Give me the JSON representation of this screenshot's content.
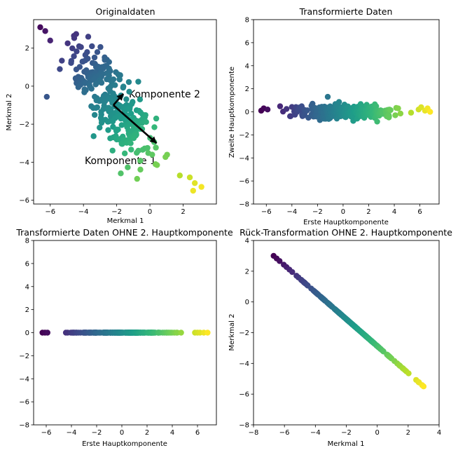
{
  "figure": {
    "colormap": [
      "#440154",
      "#482878",
      "#3e4989",
      "#31688e",
      "#26828e",
      "#1f9e89",
      "#35b779",
      "#6ece58",
      "#b5de2b",
      "#fde725"
    ]
  },
  "chart_data": [
    {
      "type": "scatter",
      "title": "Originaldaten",
      "xlabel": "Merkmal 1",
      "ylabel": "Merkmal 2",
      "xlim": [
        -7,
        4
      ],
      "ylim": [
        -6.2,
        3.5
      ],
      "xticks": [
        -6,
        -4,
        -2,
        0,
        2
      ],
      "yticks": [
        -6,
        -4,
        -2,
        0,
        2
      ],
      "grid": false,
      "color_by": "first principal component (viridis)",
      "mean": [
        -2.2,
        -1.0
      ],
      "direction": [
        0.6,
        -0.8
      ],
      "noise_sd": 0.42,
      "t_range": [
        -5.5,
        5.5
      ],
      "n_points": 300,
      "highlight_points": [
        {
          "x": -6.6,
          "y": 3.1
        },
        {
          "x": -6.3,
          "y": 2.9
        },
        {
          "x": -6.0,
          "y": 2.4
        },
        {
          "x": 1.8,
          "y": -4.7
        },
        {
          "x": 2.4,
          "y": -4.8
        },
        {
          "x": 2.7,
          "y": -5.1
        },
        {
          "x": 2.6,
          "y": -5.5
        },
        {
          "x": 3.1,
          "y": -5.3
        }
      ],
      "arrows": [
        {
          "label": "Komponente 1",
          "from": [
            -2.2,
            -1.0
          ],
          "to": [
            0.4,
            -3.0
          ],
          "label_pos": [
            -4.2,
            -4.0
          ]
        },
        {
          "label": "Komponente 2",
          "from": [
            -2.2,
            -1.0
          ],
          "to": [
            -1.6,
            -0.4
          ],
          "label_pos": [
            -1.6,
            -0.4
          ]
        }
      ]
    },
    {
      "type": "scatter",
      "title": "Transformierte Daten",
      "xlabel": "Erste Hauptkomponente",
      "ylabel": "Zweite Hauptkomponente",
      "xlim": [
        -7,
        7.5
      ],
      "ylim": [
        -8,
        8
      ],
      "xticks": [
        -6,
        -4,
        -2,
        0,
        2,
        4,
        6
      ],
      "yticks": [
        -8,
        -6,
        -4,
        -2,
        0,
        2,
        4,
        6,
        8
      ],
      "grid": false,
      "pc1_range": [
        -6.4,
        6.8
      ],
      "pc2_sd": 0.42,
      "n_points": 300
    },
    {
      "type": "scatter",
      "title": "Transformierte Daten OHNE 2. Hauptkomponente",
      "xlabel": "Erste Hauptkomponente",
      "ylabel": "",
      "xlim": [
        -7,
        7.5
      ],
      "ylim": [
        -8,
        8
      ],
      "xticks": [
        -6,
        -4,
        -2,
        0,
        2,
        4,
        6
      ],
      "yticks": [
        -8,
        -6,
        -4,
        -2,
        0,
        2,
        4,
        6,
        8
      ],
      "grid": false,
      "pc1_range": [
        -6.3,
        6.8
      ],
      "y_value": 0,
      "n_points": 300
    },
    {
      "type": "scatter",
      "title": "Rück-Transformation OHNE 2. Hauptkomponente",
      "xlabel": "Merkmal 1",
      "ylabel": "Merkmal 2",
      "xlim": [
        -8,
        4
      ],
      "ylim": [
        -8,
        4
      ],
      "xticks": [
        -8,
        -6,
        -4,
        -2,
        0,
        2,
        4
      ],
      "yticks": [
        -8,
        -6,
        -4,
        -2,
        0,
        2,
        4
      ],
      "grid": false,
      "line_from": [
        -6.7,
        3.0
      ],
      "line_to": [
        3.0,
        -5.5
      ],
      "n_points": 300
    }
  ]
}
